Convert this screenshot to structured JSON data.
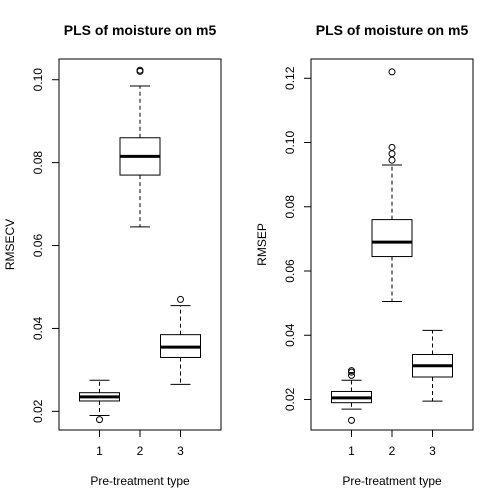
{
  "chart_data": [
    {
      "type": "boxplot",
      "title": "PLS of moisture on m5",
      "xlabel": "Pre-treatment type",
      "ylabel": "RMSECV",
      "categories": [
        "1",
        "2",
        "3"
      ],
      "ylim": [
        0.0155,
        0.105
      ],
      "yticks": [
        "0.02",
        "0.04",
        "0.06",
        "0.08",
        "0.10"
      ],
      "ytick_values": [
        0.02,
        0.04,
        0.06,
        0.08,
        0.1
      ],
      "boxes": [
        {
          "category": "1",
          "whisker_low": 0.019,
          "q1": 0.0225,
          "median": 0.0235,
          "q3": 0.0245,
          "whisker_high": 0.0275,
          "outliers": [
            0.018
          ]
        },
        {
          "category": "2",
          "whisker_low": 0.0645,
          "q1": 0.077,
          "median": 0.0815,
          "q3": 0.086,
          "whisker_high": 0.0985,
          "outliers": [
            0.102,
            0.1023
          ]
        },
        {
          "category": "3",
          "whisker_low": 0.0265,
          "q1": 0.033,
          "median": 0.0355,
          "q3": 0.0385,
          "whisker_high": 0.0455,
          "outliers": [
            0.047
          ]
        }
      ]
    },
    {
      "type": "boxplot",
      "title": "PLS of moisture on m5",
      "xlabel": "Pre-treatment type",
      "ylabel": "RMSEP",
      "categories": [
        "1",
        "2",
        "3"
      ],
      "ylim": [
        0.0105,
        0.126
      ],
      "yticks": [
        "0.02",
        "0.04",
        "0.06",
        "0.08",
        "0.10",
        "0.12"
      ],
      "ytick_values": [
        0.02,
        0.04,
        0.06,
        0.08,
        0.1,
        0.12
      ],
      "boxes": [
        {
          "category": "1",
          "whisker_low": 0.017,
          "q1": 0.019,
          "median": 0.0205,
          "q3": 0.0225,
          "whisker_high": 0.026,
          "outliers": [
            0.0135,
            0.0275,
            0.0285,
            0.029
          ]
        },
        {
          "category": "2",
          "whisker_low": 0.0505,
          "q1": 0.0645,
          "median": 0.069,
          "q3": 0.076,
          "whisker_high": 0.093,
          "outliers": [
            0.0945,
            0.0965,
            0.0985,
            0.122
          ]
        },
        {
          "category": "3",
          "whisker_low": 0.0195,
          "q1": 0.027,
          "median": 0.0305,
          "q3": 0.034,
          "whisker_high": 0.0415,
          "outliers": []
        }
      ]
    }
  ]
}
